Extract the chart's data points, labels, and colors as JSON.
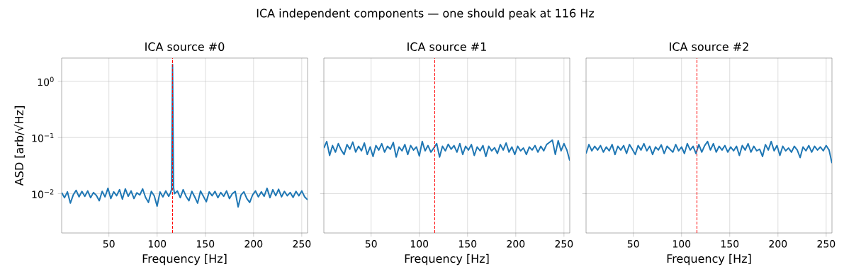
{
  "chart_data": [
    {
      "type": "line",
      "title": "ICA source #0",
      "xlabel": "Frequency [Hz]",
      "ylabel": "ASD [arb/√Hz]",
      "annotations": [
        "ICA independent components — one should peak at 116 Hz"
      ],
      "x": [
        1,
        4,
        7,
        10,
        13,
        16,
        19,
        22,
        25,
        28,
        31,
        34,
        37,
        40,
        43,
        46,
        49,
        52,
        55,
        58,
        61,
        64,
        67,
        70,
        73,
        76,
        79,
        82,
        85,
        88,
        91,
        94,
        97,
        100,
        103,
        106,
        109,
        112,
        114,
        115,
        116,
        117,
        118,
        121,
        124,
        127,
        130,
        133,
        136,
        139,
        142,
        145,
        148,
        151,
        154,
        157,
        160,
        163,
        166,
        169,
        172,
        175,
        178,
        181,
        184,
        187,
        190,
        193,
        196,
        199,
        202,
        205,
        208,
        211,
        214,
        217,
        220,
        223,
        226,
        229,
        232,
        235,
        238,
        241,
        244,
        247,
        250,
        253,
        256
      ],
      "series": [
        {
          "color": "#1f77b4",
          "values": [
            0.0105,
            0.0085,
            0.0108,
            0.0068,
            0.0095,
            0.0115,
            0.0088,
            0.011,
            0.009,
            0.0112,
            0.0085,
            0.0105,
            0.0093,
            0.0075,
            0.011,
            0.0088,
            0.0125,
            0.0082,
            0.0108,
            0.0092,
            0.0118,
            0.008,
            0.0122,
            0.009,
            0.0112,
            0.0082,
            0.0104,
            0.0095,
            0.0122,
            0.0086,
            0.007,
            0.011,
            0.0092,
            0.006,
            0.0108,
            0.0088,
            0.0112,
            0.009,
            0.0105,
            0.012,
            2.0,
            0.013,
            0.01,
            0.0112,
            0.0085,
            0.0118,
            0.009,
            0.0075,
            0.011,
            0.0088,
            0.0068,
            0.0112,
            0.009,
            0.0072,
            0.0108,
            0.0092,
            0.011,
            0.0085,
            0.0105,
            0.009,
            0.0112,
            0.0082,
            0.01,
            0.011,
            0.0058,
            0.0095,
            0.0108,
            0.0082,
            0.007,
            0.0095,
            0.0112,
            0.0088,
            0.0108,
            0.009,
            0.0125,
            0.0085,
            0.0118,
            0.0092,
            0.012,
            0.0088,
            0.011,
            0.0092,
            0.0105,
            0.0086,
            0.011,
            0.0092,
            0.0112,
            0.0088,
            0.0078
          ]
        }
      ],
      "xlim": [
        1,
        256
      ],
      "ylim": [
        0.002,
        2.6
      ],
      "log": "y",
      "grid": true,
      "xticks": [
        50,
        100,
        150,
        200,
        250
      ],
      "yticks": [
        {
          "value": 0.01,
          "label": "10$^{−2}$"
        },
        {
          "value": 0.1,
          "label": "10$^{−1}$"
        },
        {
          "value": 1,
          "label": "10$^{0}$"
        }
      ],
      "ref_lines": [
        {
          "axis": "x",
          "value": 116,
          "color": "#ff0000",
          "line_style": "dashed"
        }
      ]
    },
    {
      "type": "line",
      "title": "ICA source #1",
      "xlabel": "Frequency [Hz]",
      "x": [
        1,
        4,
        7,
        10,
        13,
        16,
        19,
        22,
        25,
        28,
        31,
        34,
        37,
        40,
        43,
        46,
        49,
        52,
        55,
        58,
        61,
        64,
        67,
        70,
        73,
        76,
        79,
        82,
        85,
        88,
        91,
        94,
        97,
        100,
        103,
        106,
        109,
        112,
        115,
        118,
        121,
        124,
        127,
        130,
        133,
        136,
        139,
        142,
        145,
        148,
        151,
        154,
        157,
        160,
        163,
        166,
        169,
        172,
        175,
        178,
        181,
        184,
        187,
        190,
        193,
        196,
        199,
        202,
        205,
        208,
        211,
        214,
        217,
        220,
        223,
        226,
        229,
        232,
        235,
        238,
        241,
        244,
        247,
        250,
        253,
        256
      ],
      "series": [
        {
          "color": "#1f77b4",
          "values": [
            0.065,
            0.085,
            0.048,
            0.072,
            0.055,
            0.078,
            0.06,
            0.05,
            0.075,
            0.062,
            0.083,
            0.055,
            0.07,
            0.058,
            0.08,
            0.05,
            0.068,
            0.046,
            0.072,
            0.06,
            0.078,
            0.055,
            0.07,
            0.062,
            0.082,
            0.045,
            0.068,
            0.058,
            0.075,
            0.05,
            0.072,
            0.06,
            0.068,
            0.047,
            0.085,
            0.058,
            0.072,
            0.055,
            0.065,
            0.078,
            0.045,
            0.07,
            0.058,
            0.076,
            0.062,
            0.072,
            0.055,
            0.078,
            0.05,
            0.07,
            0.06,
            0.075,
            0.048,
            0.068,
            0.058,
            0.072,
            0.046,
            0.07,
            0.058,
            0.066,
            0.052,
            0.075,
            0.06,
            0.08,
            0.055,
            0.068,
            0.05,
            0.07,
            0.058,
            0.065,
            0.05,
            0.068,
            0.06,
            0.072,
            0.055,
            0.07,
            0.058,
            0.075,
            0.082,
            0.09,
            0.05,
            0.088,
            0.058,
            0.078,
            0.06,
            0.039
          ]
        }
      ],
      "xlim": [
        1,
        256
      ],
      "ylim": [
        0.002,
        2.6
      ],
      "log": "y",
      "grid": true,
      "tick_labels": "x",
      "xticks": [
        50,
        100,
        150,
        200,
        250
      ],
      "yticks": [
        0.01,
        0.1,
        1
      ],
      "ref_lines": [
        {
          "axis": "x",
          "value": 116,
          "color": "#ff0000",
          "line_style": "dashed"
        }
      ]
    },
    {
      "type": "line",
      "title": "ICA source #2",
      "xlabel": "Frequency [Hz]",
      "x": [
        1,
        4,
        7,
        10,
        13,
        16,
        19,
        22,
        25,
        28,
        31,
        34,
        37,
        40,
        43,
        46,
        49,
        52,
        55,
        58,
        61,
        64,
        67,
        70,
        73,
        76,
        79,
        82,
        85,
        88,
        91,
        94,
        97,
        100,
        103,
        106,
        109,
        112,
        115,
        118,
        121,
        124,
        127,
        130,
        133,
        136,
        139,
        142,
        145,
        148,
        151,
        154,
        157,
        160,
        163,
        166,
        169,
        172,
        175,
        178,
        181,
        184,
        187,
        190,
        193,
        196,
        199,
        202,
        205,
        208,
        211,
        214,
        217,
        220,
        223,
        226,
        229,
        232,
        235,
        238,
        241,
        244,
        247,
        250,
        253,
        256
      ],
      "series": [
        {
          "color": "#1f77b4",
          "values": [
            0.052,
            0.075,
            0.058,
            0.07,
            0.06,
            0.072,
            0.055,
            0.068,
            0.058,
            0.075,
            0.05,
            0.07,
            0.06,
            0.072,
            0.052,
            0.075,
            0.062,
            0.05,
            0.072,
            0.06,
            0.078,
            0.058,
            0.07,
            0.05,
            0.068,
            0.06,
            0.074,
            0.052,
            0.07,
            0.062,
            0.055,
            0.075,
            0.058,
            0.068,
            0.052,
            0.078,
            0.06,
            0.07,
            0.052,
            0.075,
            0.055,
            0.072,
            0.085,
            0.06,
            0.078,
            0.055,
            0.07,
            0.06,
            0.072,
            0.055,
            0.068,
            0.058,
            0.07,
            0.048,
            0.072,
            0.06,
            0.078,
            0.055,
            0.07,
            0.058,
            0.062,
            0.046,
            0.075,
            0.06,
            0.085,
            0.058,
            0.072,
            0.048,
            0.07,
            0.058,
            0.065,
            0.055,
            0.07,
            0.06,
            0.044,
            0.068,
            0.058,
            0.072,
            0.055,
            0.07,
            0.06,
            0.068,
            0.058,
            0.072,
            0.06,
            0.035
          ]
        }
      ],
      "xlim": [
        1,
        256
      ],
      "ylim": [
        0.002,
        2.6
      ],
      "log": "y",
      "grid": true,
      "tick_labels": "x",
      "xticks": [
        50,
        100,
        150,
        200,
        250
      ],
      "yticks": [
        0.01,
        0.1,
        1
      ],
      "ref_lines": [
        {
          "axis": "x",
          "value": 116,
          "color": "#ff0000",
          "line_style": "dashed"
        }
      ]
    }
  ]
}
